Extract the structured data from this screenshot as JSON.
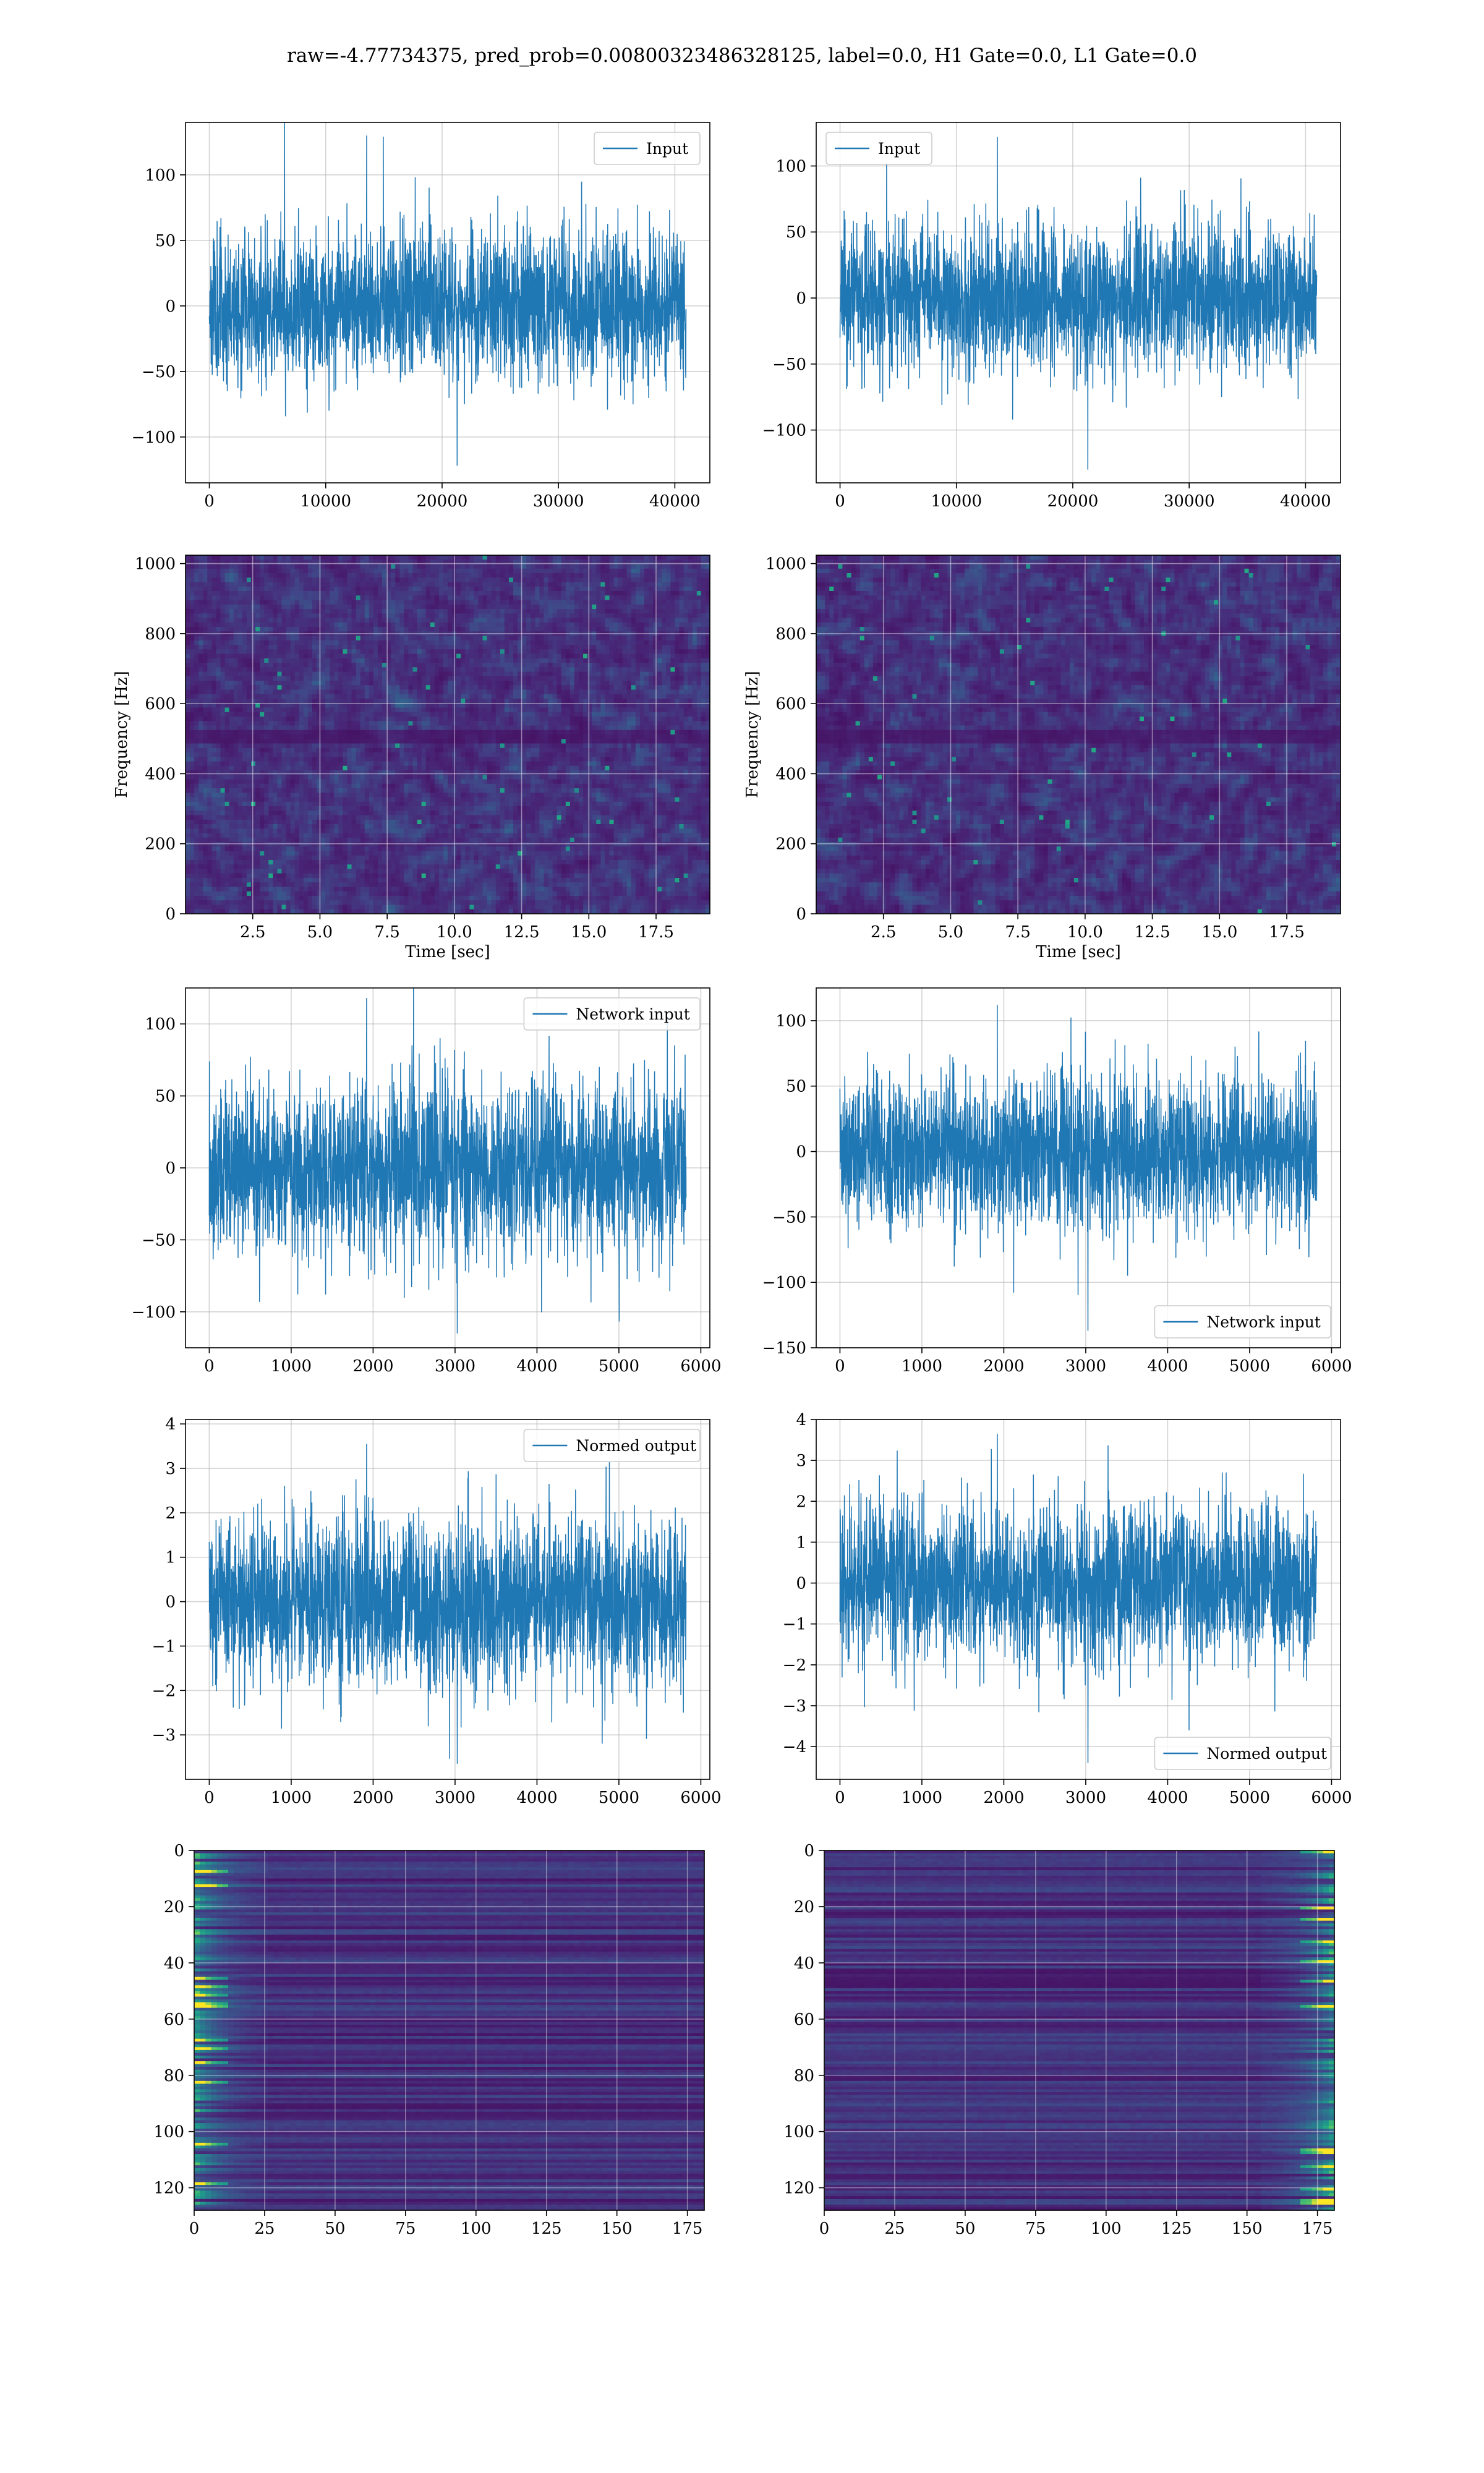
{
  "figure": {
    "title": "raw=-4.77734375, pred_prob=0.00800323486328125, label=0.0, H1 Gate=0.0, L1 Gate=0.0"
  },
  "colors": {
    "line": "#1f77b4",
    "grid": "#b0b0b0"
  },
  "chart_data": [
    {
      "id": "p1",
      "type": "line",
      "legend": "Input",
      "legend_loc": "upper right",
      "xlim": [
        -2048,
        43008
      ],
      "ylim": [
        -135,
        140
      ],
      "xticks": [
        0,
        10000,
        20000,
        30000,
        40000
      ],
      "yticks": [
        -100,
        -50,
        0,
        50,
        100
      ],
      "x_range": [
        0,
        40960
      ],
      "amp": 28,
      "peak_max": 130,
      "peak_min": -122,
      "seed": 11,
      "grid": true,
      "xlabel": "",
      "ylabel": ""
    },
    {
      "id": "p2",
      "type": "line",
      "legend": "Input",
      "legend_loc": "upper left",
      "xlim": [
        -2048,
        43008
      ],
      "ylim": [
        -140,
        133
      ],
      "xticks": [
        0,
        10000,
        20000,
        30000,
        40000
      ],
      "yticks": [
        -100,
        -50,
        0,
        50,
        100
      ],
      "x_range": [
        0,
        40960
      ],
      "amp": 27,
      "peak_max": 122,
      "peak_min": -130,
      "seed": 23,
      "grid": true,
      "xlabel": "",
      "ylabel": ""
    },
    {
      "id": "p3",
      "type": "heatmap",
      "kind": "spectrogram",
      "xlim": [
        0,
        19.5
      ],
      "ylim": [
        0,
        1024
      ],
      "xticks": [
        2.5,
        5.0,
        7.5,
        10.0,
        12.5,
        15.0,
        17.5
      ],
      "yticks": [
        0,
        200,
        400,
        600,
        800,
        1000
      ],
      "xlabel": "Time [sec]",
      "ylabel": "Frequency [Hz]",
      "seed": 5,
      "grid": true
    },
    {
      "id": "p4",
      "type": "heatmap",
      "kind": "spectrogram",
      "xlim": [
        0,
        19.5
      ],
      "ylim": [
        0,
        1024
      ],
      "xticks": [
        2.5,
        5.0,
        7.5,
        10.0,
        12.5,
        15.0,
        17.5
      ],
      "yticks": [
        0,
        200,
        400,
        600,
        800,
        1000
      ],
      "xlabel": "Time [sec]",
      "ylabel": "Frequency [Hz]",
      "seed": 9,
      "grid": true
    },
    {
      "id": "p5",
      "type": "line",
      "legend": "Network input",
      "legend_loc": "upper right",
      "xlim": [
        -290,
        6110
      ],
      "ylim": [
        -125,
        125
      ],
      "xticks": [
        0,
        1000,
        2000,
        3000,
        4000,
        5000,
        6000
      ],
      "yticks": [
        -100,
        -50,
        0,
        50,
        100
      ],
      "x_range": [
        0,
        5820
      ],
      "amp": 30,
      "peak_max": 118,
      "peak_min": -115,
      "seed": 37,
      "grid": true,
      "xlabel": "",
      "ylabel": ""
    },
    {
      "id": "p6",
      "type": "line",
      "legend": "Network input",
      "legend_loc": "lower right",
      "xlim": [
        -290,
        6110
      ],
      "ylim": [
        -150,
        125
      ],
      "xticks": [
        0,
        1000,
        2000,
        3000,
        4000,
        5000,
        6000
      ],
      "yticks": [
        -150,
        -100,
        -50,
        0,
        50,
        100
      ],
      "x_range": [
        0,
        5820
      ],
      "amp": 29,
      "peak_max": 112,
      "peak_min": -137,
      "seed": 41,
      "grid": true,
      "xlabel": "",
      "ylabel": ""
    },
    {
      "id": "p7",
      "type": "line",
      "legend": "Normed output",
      "legend_loc": "upper right",
      "xlim": [
        -290,
        6110
      ],
      "ylim": [
        -4.0,
        4.1
      ],
      "xticks": [
        0,
        1000,
        2000,
        3000,
        4000,
        5000,
        6000
      ],
      "yticks": [
        -3,
        -2,
        -1,
        0,
        1,
        2,
        3,
        4
      ],
      "x_range": [
        0,
        5820
      ],
      "amp": 0.95,
      "peak_max": 3.55,
      "peak_min": -3.65,
      "seed": 53,
      "grid": true,
      "xlabel": "",
      "ylabel": ""
    },
    {
      "id": "p8",
      "type": "line",
      "legend": "Normed output",
      "legend_loc": "lower right",
      "xlim": [
        -290,
        6110
      ],
      "ylim": [
        -4.8,
        4.0
      ],
      "xticks": [
        0,
        1000,
        2000,
        3000,
        4000,
        5000,
        6000
      ],
      "yticks": [
        -4,
        -3,
        -2,
        -1,
        0,
        1,
        2,
        3,
        4
      ],
      "x_range": [
        0,
        5820
      ],
      "amp": 0.95,
      "peak_max": 3.65,
      "peak_min": -4.4,
      "seed": 67,
      "grid": true,
      "xlabel": "",
      "ylabel": ""
    },
    {
      "id": "p9",
      "type": "heatmap",
      "kind": "features",
      "xlim": [
        0,
        181
      ],
      "ylim": [
        128,
        0
      ],
      "xticks": [
        0,
        25,
        50,
        75,
        100,
        125,
        150,
        175
      ],
      "yticks": [
        0,
        20,
        40,
        60,
        80,
        100,
        120
      ],
      "bright_side": "left",
      "seed": 71,
      "grid": true,
      "xlabel": "",
      "ylabel": ""
    },
    {
      "id": "p10",
      "type": "heatmap",
      "kind": "features",
      "xlim": [
        0,
        181
      ],
      "ylim": [
        128,
        0
      ],
      "xticks": [
        0,
        25,
        50,
        75,
        100,
        125,
        150,
        175
      ],
      "yticks": [
        0,
        20,
        40,
        60,
        80,
        100,
        120
      ],
      "bright_side": "right",
      "seed": 83,
      "grid": true,
      "xlabel": "",
      "ylabel": ""
    }
  ]
}
